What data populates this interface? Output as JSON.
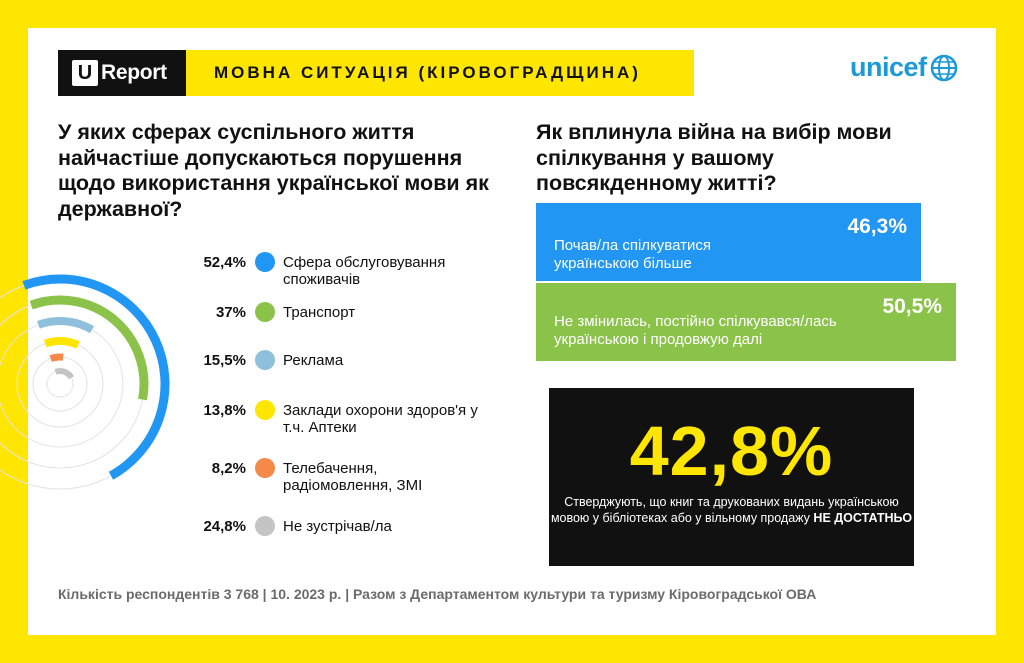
{
  "brand": {
    "letter": "U",
    "name": "Report"
  },
  "header": {
    "title": "МОВНА СИТУАЦІЯ (КІРОВОГРАДЩИНА)"
  },
  "unicef": {
    "name": "unicef"
  },
  "colors": {
    "blue": "#2196f3",
    "green": "#8bc34a",
    "lightblue": "#8ec0dc",
    "yellow": "#ffe600",
    "orange": "#f4894a",
    "gray": "#c4c4c4"
  },
  "question1": "У яких сферах суспільного життя найчастіше допускаються порушення щодо використання української мови як державної?",
  "question2": "Як вплинула війна на вибір мови спілкування у вашому повсякденному житті?",
  "chart_data": [
    {
      "type": "radial-bar",
      "series": [
        {
          "label": "Сфера обслуговування споживачів",
          "value": 52.4,
          "display": "52,4%",
          "color": "#2196f3"
        },
        {
          "label": "Транспорт",
          "value": 37,
          "display": "37%",
          "color": "#8bc34a"
        },
        {
          "label": "Реклама",
          "value": 15.5,
          "display": "15,5%",
          "color": "#8ec0dc"
        },
        {
          "label": "Заклади охорони здоров'я у т.ч. Аптеки",
          "value": 13.8,
          "display": "13,8%",
          "color": "#ffe600"
        },
        {
          "label": "Телебачення, радіомовлення, ЗМІ",
          "value": 8.2,
          "display": "8,2%",
          "color": "#f4894a"
        },
        {
          "label": "Не зустрічав/ла",
          "value": 24.8,
          "display": "24,8%",
          "color": "#c4c4c4"
        }
      ]
    },
    {
      "type": "bar",
      "series": [
        {
          "label": "Почав/ла спілкуватися українською більше",
          "value": 46.3,
          "display": "46,3%",
          "color": "#2196f3"
        },
        {
          "label": "Не змінилась, постійно спілкувався/лась українською і продовжую далі",
          "value": 50.5,
          "display": "50,5%",
          "color": "#8bc34a"
        }
      ]
    }
  ],
  "highlight": {
    "value": "42,8%",
    "text": "Стверджують, що книг та друкованих видань українською мовою у бібліотеках або у вільному продажу",
    "emphasis": "НЕ ДОСТАТНЬО"
  },
  "footer": "Кількість респондентів 3 768 | 10. 2023 р. | Разом з Департаментом культури та туризму Кіровоградської ОВА"
}
